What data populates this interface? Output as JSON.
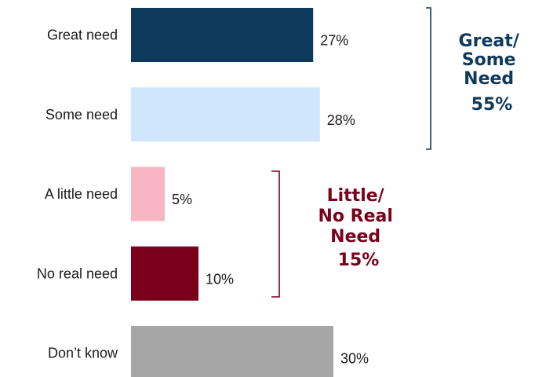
{
  "chart_data": {
    "type": "bar",
    "orientation": "horizontal",
    "categories": [
      "Great need",
      "Some need",
      "A little need",
      "No real need",
      "Don’t know"
    ],
    "values": [
      27,
      28,
      5,
      10,
      30
    ],
    "value_labels": [
      "27%",
      "28%",
      "5%",
      "10%",
      "30%"
    ],
    "colors": [
      "#0d3a5c",
      "#cfe6fb",
      "#f8b6c4",
      "#7a001b",
      "#a6a6a6"
    ],
    "xlim": [
      0,
      30
    ],
    "grid": false,
    "groups": [
      {
        "lines": [
          "Great/",
          "Some",
          "Need",
          "55%"
        ],
        "color": "#0d3a5c",
        "members": [
          "Great need",
          "Some need"
        ]
      },
      {
        "lines": [
          "Little/",
          "No Real",
          "Need",
          "15%"
        ],
        "color": "#7a001b",
        "members": [
          "A little need",
          "No real need"
        ]
      }
    ]
  }
}
